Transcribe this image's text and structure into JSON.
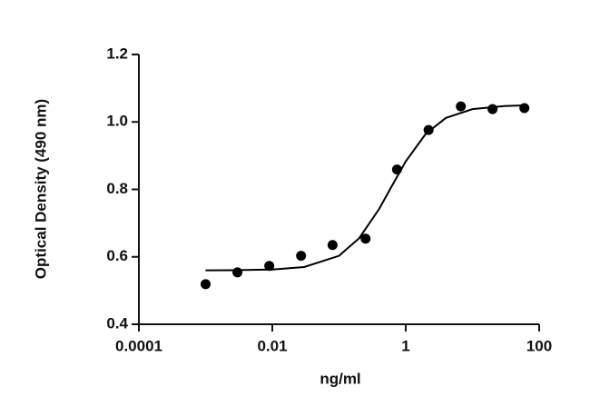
{
  "chart_data": {
    "type": "scatter",
    "x_label": "ng/ml",
    "y_label": "Optical Density (490 nm)",
    "log_x": true,
    "xlim": [
      0.0001,
      100
    ],
    "xticks": [
      0.0001,
      0.01,
      1,
      100
    ],
    "ylim": [
      0.4,
      1.2
    ],
    "yticks": [
      0.4,
      0.6,
      0.8,
      {
        "value": 1,
        "label": "1.0"
      },
      1.2
    ],
    "series": [
      {
        "mode": "markers",
        "color": "#000000",
        "x": [
          0.001,
          0.003,
          0.009,
          0.027,
          0.08,
          0.25,
          0.74,
          2.2,
          6.7,
          20,
          60
        ],
        "values": [
          0.519,
          0.554,
          0.573,
          0.603,
          0.635,
          0.654,
          0.859,
          0.976,
          1.046,
          1.038,
          1.041
        ]
      },
      {
        "mode": "line",
        "color": "#000000",
        "x": [
          0.001,
          0.003,
          0.01,
          0.03,
          0.1,
          0.2,
          0.4,
          0.6,
          1,
          2,
          4,
          10,
          30,
          60
        ],
        "values": [
          0.56,
          0.5605,
          0.5624,
          0.5698,
          0.603,
          0.655,
          0.742,
          0.805,
          0.883,
          0.965,
          1.012,
          1.038,
          1.047,
          1.049
        ]
      }
    ]
  }
}
